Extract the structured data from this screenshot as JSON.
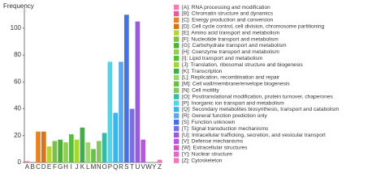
{
  "chart_data": {
    "type": "bar",
    "y_label": "Frequency",
    "categories": [
      "A",
      "B",
      "C",
      "D",
      "E",
      "F",
      "G",
      "H",
      "I",
      "J",
      "K",
      "L",
      "M",
      "N",
      "O",
      "P",
      "Q",
      "R",
      "S",
      "T",
      "U",
      "V",
      "W",
      "Y",
      "Z"
    ],
    "values": [
      1,
      0,
      23,
      23,
      12,
      16,
      17,
      15,
      21,
      17,
      26,
      15,
      10,
      16,
      22,
      75,
      37,
      75,
      110,
      40,
      105,
      17,
      0,
      0,
      2
    ],
    "colors": [
      "#f47ab0",
      "#e85a9c",
      "#e8821e",
      "#d9731a",
      "#b5d334",
      "#7cc242",
      "#4caf3a",
      "#8fd14f",
      "#52c234",
      "#a8d530",
      "#3fae49",
      "#9ad66d",
      "#6abf4b",
      "#86c75a",
      "#39b8a6",
      "#4fd6e8",
      "#3bb4e8",
      "#5ba8f0",
      "#4472e0",
      "#7a6fe0",
      "#9a5ae0",
      "#b45ad8",
      "#d650c8",
      "#e06ac0",
      "#f07ab8"
    ],
    "legend": [
      "[A]: RNA processing and modification",
      "[B]: Chromatin structure and dynamics",
      "[C]: Energy production and conversion",
      "[D]: Cell cycle control, cell division, chromosome partitioning",
      "[E]: Amino acid transport and metabolism",
      "[F]: Nucleotide transport and metabolism",
      "[G]: Carbohydrate transport and metabolism",
      "[H]: Coenzyme transport and metabolism",
      "[I]: Lipid transport and metabolism",
      "[J]: Translation, ribosomal structure and biogenesis",
      "[K]: Transcription",
      "[L]: Replication, recombination and repair",
      "[M]: Cell wall/membrane/envelope biogenesis",
      "[N]: Cell motility",
      "[O]: Posttranslational modification, protein turnover, chaperones",
      "[P]: Inorganic ion transport and metabolism",
      "[Q]: Secondary metabolites biosynthesis, transport and catabolism",
      "[R]: General function prediction only",
      "[S]: Function unknown",
      "[T]: Signal transduction mechanisms",
      "[U]: Intracellular trafficking, secretion, and vesicular transport",
      "[V]: Defense mechanisms",
      "[W]: Extracellular structures",
      "[Y]: Nuclear structure",
      "[Z]: Cytoskeleton"
    ],
    "ylim": [
      0,
      115
    ],
    "yticks": [
      0,
      20,
      40,
      60,
      80,
      100
    ]
  }
}
